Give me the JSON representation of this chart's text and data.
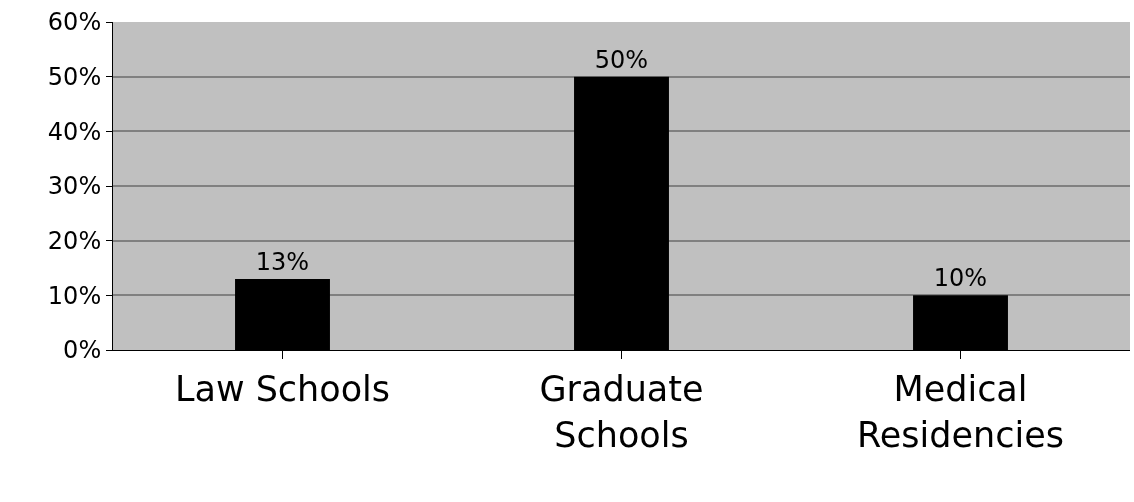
{
  "chart_data": {
    "type": "bar",
    "categories": [
      "Law Schools",
      "Graduate Schools",
      "Medical Residencies"
    ],
    "values": [
      13,
      50,
      10
    ],
    "value_labels": [
      "13%",
      "50%",
      "10%"
    ],
    "color": "#000000",
    "ylim": [
      0,
      60
    ],
    "yticks": [
      {
        "value": 0,
        "label": "0%"
      },
      {
        "value": 10,
        "label": "10%"
      },
      {
        "value": 20,
        "label": "20%"
      },
      {
        "value": 30,
        "label": "30%"
      },
      {
        "value": 40,
        "label": "40%"
      },
      {
        "value": 50,
        "label": "50%"
      },
      {
        "value": 60,
        "label": "60%"
      }
    ],
    "grid": "y",
    "legend": false
  }
}
